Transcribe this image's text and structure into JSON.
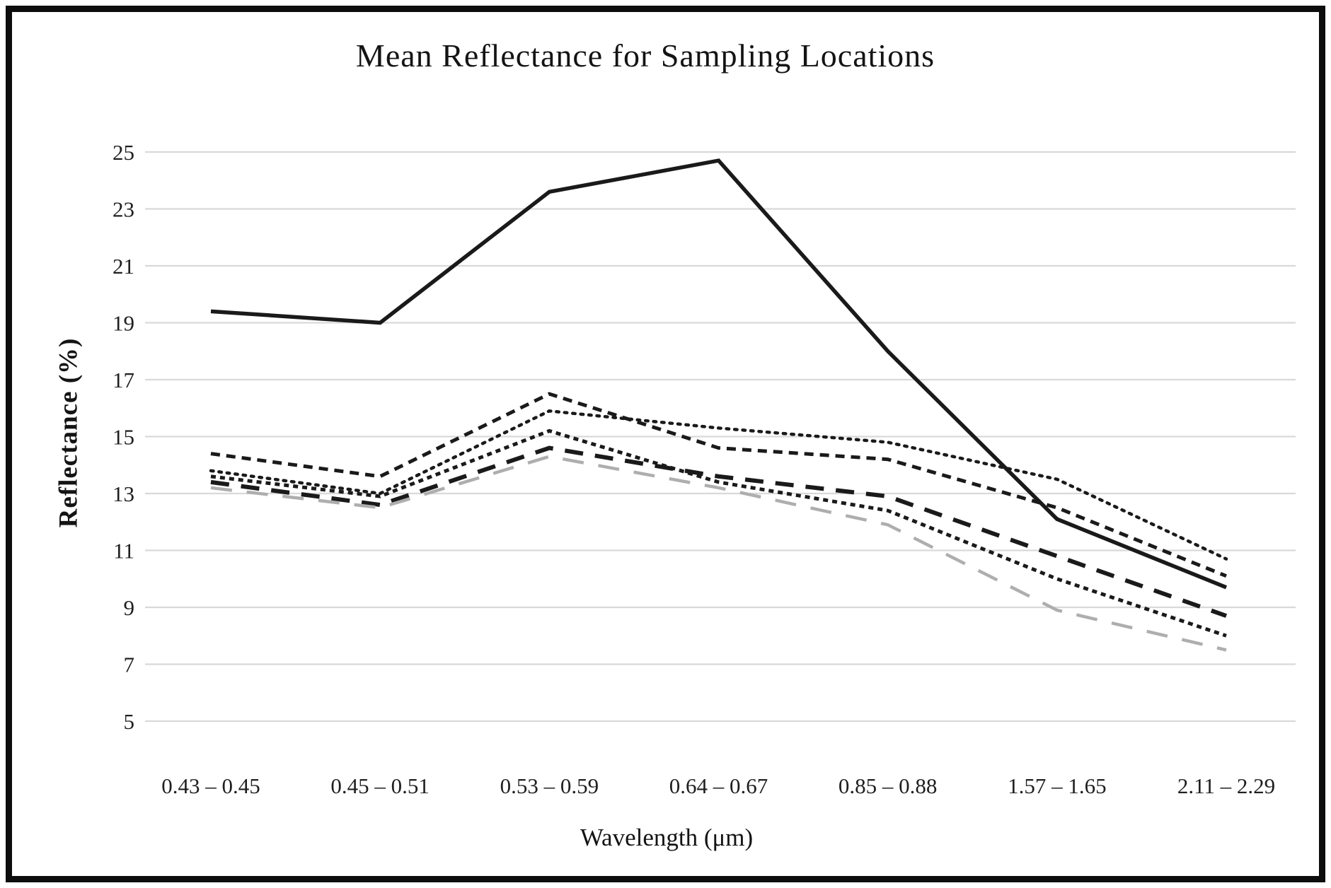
{
  "chart_data": {
    "type": "line",
    "title": "Mean Reflectance for Sampling Locations",
    "xlabel": "Wavelength (μm)",
    "ylabel": "Reflectance (%)",
    "categories": [
      "0.43 – 0.45",
      "0.45 – 0.51",
      "0.53 – 0.59",
      "0.64 – 0.67",
      "0.85 – 0.88",
      "1.57 – 1.65",
      "2.11 – 2.29"
    ],
    "ylim": [
      5,
      25
    ],
    "y_ticks": [
      5,
      7,
      9,
      11,
      13,
      15,
      17,
      19,
      21,
      23,
      25
    ],
    "grid": "horizontal",
    "legend": "none",
    "series": [
      {
        "name": "solid-line",
        "style": "solid",
        "color": "#1a1a1a",
        "values": [
          19.4,
          19.0,
          23.6,
          24.7,
          18.0,
          12.1,
          9.7
        ]
      },
      {
        "name": "dash-line",
        "style": "dash",
        "color": "#1a1a1a",
        "values": [
          14.4,
          13.6,
          16.5,
          14.6,
          14.2,
          12.5,
          10.1
        ]
      },
      {
        "name": "dot-line",
        "style": "dot",
        "color": "#1a1a1a",
        "values": [
          13.8,
          13.0,
          15.9,
          15.3,
          14.8,
          13.5,
          10.7
        ]
      },
      {
        "name": "square-dot-line",
        "style": "square-dot",
        "color": "#1a1a1a",
        "values": [
          13.6,
          12.9,
          15.2,
          13.4,
          12.4,
          10.0,
          8.0
        ]
      },
      {
        "name": "long-dash-line",
        "style": "long-dash",
        "color": "#1a1a1a",
        "values": [
          13.4,
          12.6,
          14.6,
          13.6,
          12.9,
          10.8,
          8.7
        ]
      },
      {
        "name": "gray-long-dash-line",
        "style": "long-dash-gray",
        "color": "#aeaeae",
        "values": [
          13.2,
          12.5,
          14.3,
          13.2,
          11.9,
          8.9,
          7.5
        ]
      }
    ]
  },
  "colors": {
    "background": "#ffffff",
    "border": "#0d0d0d",
    "gridline": "#d9d9d9",
    "text": "#1f1f1f"
  }
}
